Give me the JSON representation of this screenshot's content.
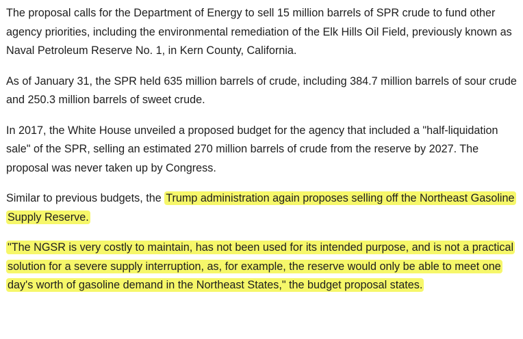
{
  "article": {
    "paragraphs": [
      {
        "text": "The proposal calls for the Department of Energy to sell 15 million barrels of SPR crude to fund other agency priorities, including the environmental remediation of the Elk Hills Oil Field, previously known as Naval Petroleum Reserve No. 1, in Kern County, California."
      },
      {
        "text": "As of January 31, the SPR held 635 million barrels of crude, including 384.7 million barrels of sour crude and 250.3 million barrels of sweet crude."
      },
      {
        "text": "In 2017, the White House unveiled a proposed budget for the agency that included a \"half-liquidation sale\" of the SPR, selling an estimated 270 million barrels of crude from the reserve by 2027. The proposal was never taken up by Congress."
      },
      {
        "plain": "Similar to previous budgets, the ",
        "highlight": "Trump administration again proposes selling off the Northeast Gasoline Supply Reserve."
      },
      {
        "highlight": "\"The NGSR is very costly to maintain, has not been used for its intended purpose, and is not a practical solution for a severe supply interruption, as, for example, the reserve would only be able to meet one day's worth of gasoline demand in the Northeast States,\" the budget proposal states."
      }
    ]
  },
  "highlight_color": "#f6f76a"
}
